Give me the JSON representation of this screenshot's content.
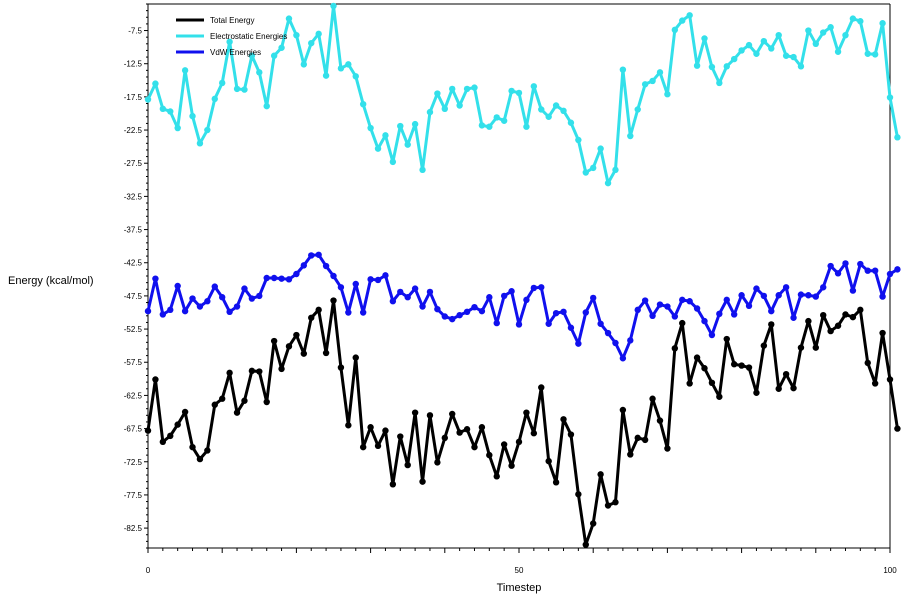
{
  "chart_data": {
    "type": "line",
    "title": "",
    "xlabel": "Timestep",
    "ylabel": "Energy (kcal/mol)",
    "xlim": [
      0,
      100
    ],
    "ylim": [
      -85.5,
      -3.5
    ],
    "y_ticks": [
      -7.5,
      -12.5,
      -17.5,
      -22.5,
      -27.5,
      -32.5,
      -37.5,
      -42.5,
      -47.5,
      -52.5,
      -57.5,
      -62.5,
      -67.5,
      -72.5,
      -77.5,
      -82.5
    ],
    "y_tick_labels": [
      "-7.5",
      "-12.5",
      "-17.5",
      "-22.5",
      "-27.5",
      "-32.5",
      "-37.5",
      "-42.5",
      "-47.5",
      "-52.5",
      "-57.5",
      "-62.5",
      "-67.5",
      "-72.5",
      "-77.5",
      "-82.5"
    ],
    "x_ticks": [
      0,
      50,
      100
    ],
    "x_tick_labels": [
      "0",
      "50",
      "100"
    ],
    "grid": false,
    "legend": "top-left",
    "series": [
      {
        "name": "Total Energy",
        "color": "#000000",
        "values": [
          -67.8,
          -60.1,
          -69.5,
          -68.6,
          -66.9,
          -65.0,
          -70.3,
          -72.1,
          -70.8,
          -63.9,
          -63.0,
          -59.1,
          -65.1,
          -63.3,
          -58.8,
          -58.9,
          -63.5,
          -54.3,
          -58.5,
          -55.1,
          -53.4,
          -56.2,
          -50.8,
          -49.6,
          -56.1,
          -48.2,
          -58.3,
          -67.0,
          -56.8,
          -70.3,
          -67.3,
          -70.1,
          -67.8,
          -75.9,
          -68.7,
          -73.0,
          -65.1,
          -75.5,
          -65.5,
          -72.6,
          -68.9,
          -65.3,
          -68.1,
          -67.6,
          -70.3,
          -67.3,
          -71.5,
          -74.7,
          -69.9,
          -73.1,
          -69.5,
          -65.1,
          -68.2,
          -61.3,
          -72.4,
          -75.6,
          -66.1,
          -68.4,
          -77.4,
          -85.0,
          -81.8,
          -74.4,
          -79.1,
          -78.6,
          -64.7,
          -71.4,
          -68.9,
          -69.2,
          -63.0,
          -66.3,
          -70.5,
          -55.4,
          -51.6,
          -60.7,
          -56.8,
          -58.4,
          -60.6,
          -62.7,
          -54.0,
          -57.8,
          -58.0,
          -58.3,
          -62.1,
          -55.0,
          -51.8,
          -61.5,
          -59.3,
          -61.4,
          -55.3,
          -51.3,
          -55.3,
          -50.4,
          -52.8,
          -52.0,
          -50.3,
          -50.7,
          -49.6,
          -57.6,
          -60.7,
          -53.1,
          -60.1,
          -67.5
        ]
      },
      {
        "name": "Electrostatic Energies",
        "color": "#33e0ea",
        "values": [
          -17.9,
          -15.5,
          -19.3,
          -19.7,
          -22.2,
          -13.5,
          -20.4,
          -24.5,
          -22.5,
          -17.8,
          -15.4,
          -9.2,
          -16.3,
          -16.4,
          -11.3,
          -13.8,
          -18.9,
          -11.3,
          -10.1,
          -5.7,
          -8.2,
          -12.6,
          -9.4,
          -8.0,
          -14.3,
          -3.8,
          -13.2,
          -12.6,
          -14.4,
          -18.6,
          -22.2,
          -25.3,
          -23.3,
          -27.3,
          -21.9,
          -24.7,
          -21.6,
          -28.5,
          -19.8,
          -17.0,
          -19.3,
          -16.3,
          -18.8,
          -16.3,
          -16.1,
          -21.8,
          -22.0,
          -20.6,
          -21.1,
          -16.6,
          -16.9,
          -22.0,
          -15.9,
          -19.4,
          -20.5,
          -18.8,
          -19.6,
          -21.4,
          -24.0,
          -28.9,
          -28.2,
          -25.3,
          -30.5,
          -28.5,
          -13.4,
          -23.4,
          -19.4,
          -15.6,
          -15.1,
          -13.8,
          -17.1,
          -7.4,
          -6.0,
          -5.2,
          -12.8,
          -8.7,
          -13.0,
          -15.4,
          -12.9,
          -11.8,
          -10.5,
          -9.7,
          -11.0,
          -9.1,
          -10.2,
          -8.2,
          -11.3,
          -11.5,
          -12.9,
          -7.5,
          -9.5,
          -7.8,
          -7.0,
          -10.7,
          -8.2,
          -5.7,
          -6.1,
          -11.0,
          -11.1,
          -6.4,
          -17.6,
          -23.6
        ]
      },
      {
        "name": "VdW Energies",
        "color": "#1010ee",
        "values": [
          -49.8,
          -44.9,
          -50.3,
          -49.6,
          -46.0,
          -49.8,
          -47.9,
          -49.1,
          -48.3,
          -46.1,
          -47.7,
          -49.9,
          -49.1,
          -46.4,
          -47.9,
          -47.5,
          -44.8,
          -44.8,
          -44.9,
          -45.0,
          -44.2,
          -42.9,
          -41.4,
          -41.3,
          -43.0,
          -44.5,
          -46.2,
          -50.0,
          -45.7,
          -50.0,
          -45.0,
          -45.1,
          -44.4,
          -48.3,
          -46.9,
          -47.7,
          -46.4,
          -49.1,
          -46.9,
          -49.5,
          -50.6,
          -51.0,
          -50.4,
          -49.9,
          -49.2,
          -49.8,
          -47.7,
          -51.6,
          -47.5,
          -46.8,
          -51.8,
          -48.1,
          -46.3,
          -46.2,
          -51.7,
          -50.1,
          -49.9,
          -52.3,
          -54.7,
          -50.0,
          -47.8,
          -51.7,
          -53.1,
          -54.6,
          -56.9,
          -54.2,
          -49.6,
          -48.2,
          -50.5,
          -48.8,
          -49.1,
          -50.6,
          -48.1,
          -48.3,
          -49.4,
          -51.3,
          -53.4,
          -50.2,
          -48.1,
          -50.3,
          -47.4,
          -49.0,
          -46.4,
          -47.5,
          -49.8,
          -47.4,
          -46.2,
          -50.8,
          -47.3,
          -47.4,
          -47.6,
          -46.2,
          -43.0,
          -44.1,
          -42.6,
          -46.7,
          -42.7,
          -43.7,
          -43.7,
          -47.6,
          -44.2,
          -43.5
        ]
      }
    ]
  }
}
